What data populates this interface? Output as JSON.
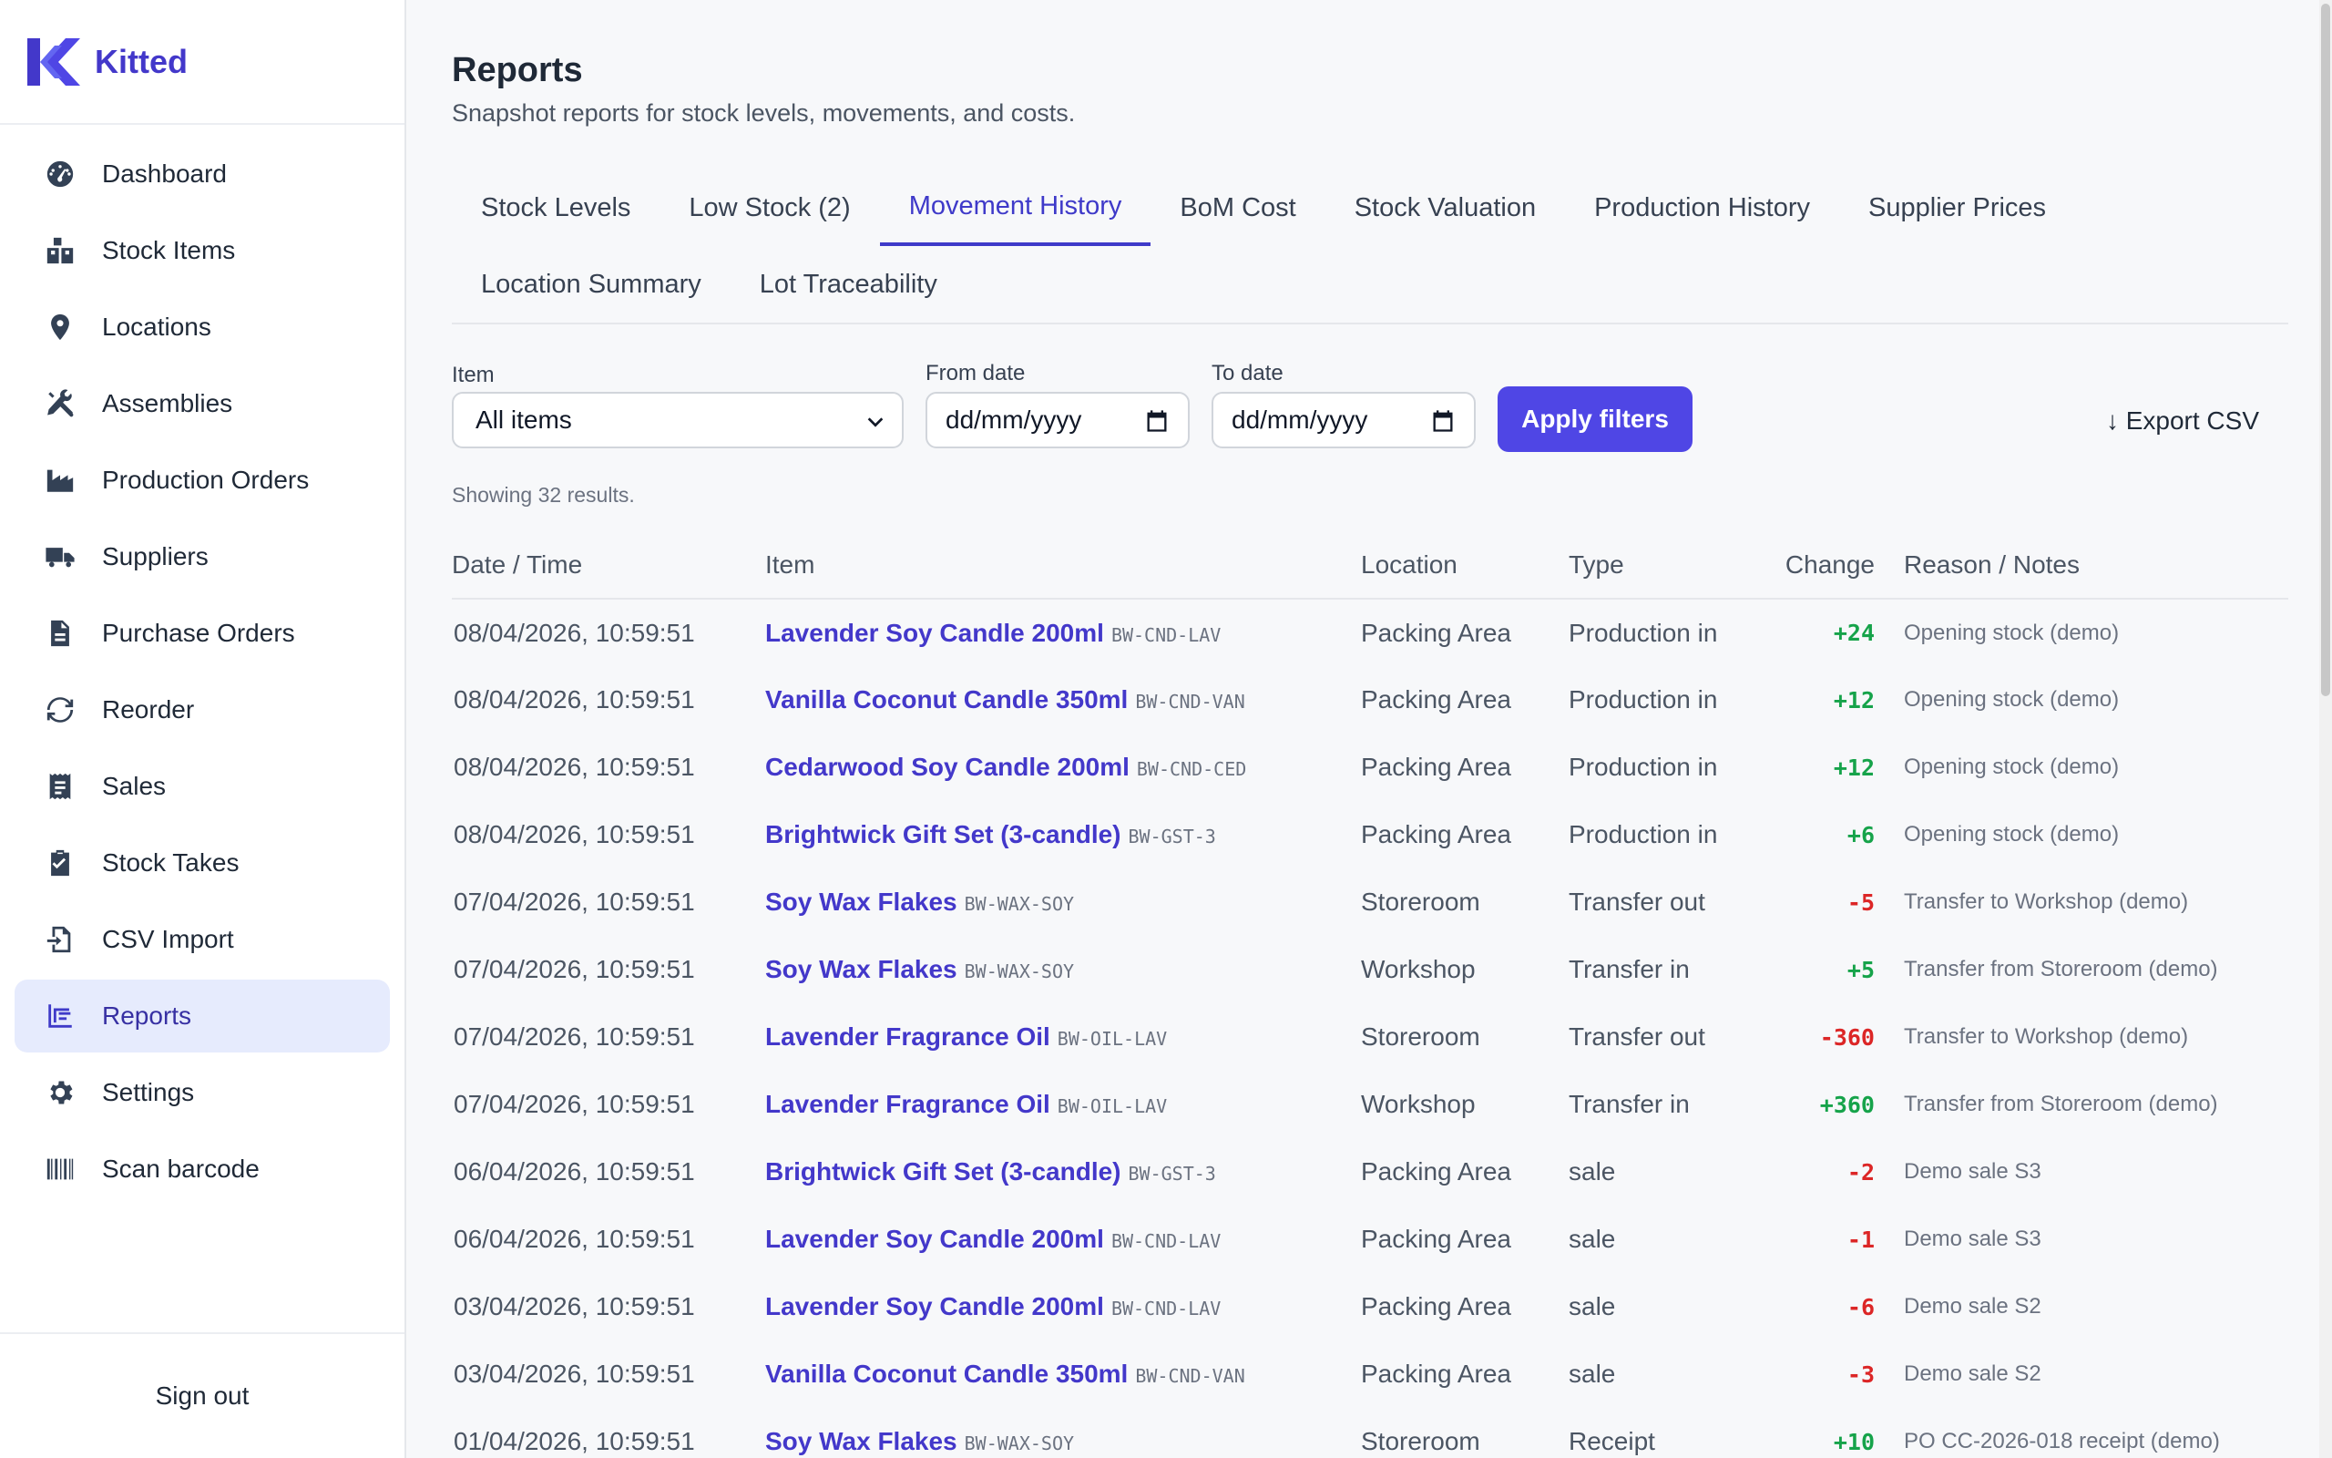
{
  "app": {
    "name": "Kitted"
  },
  "sidebar": {
    "items": [
      {
        "label": "Dashboard",
        "icon": "gauge-icon"
      },
      {
        "label": "Stock Items",
        "icon": "boxes-icon"
      },
      {
        "label": "Locations",
        "icon": "map-pin-icon"
      },
      {
        "label": "Assemblies",
        "icon": "tools-icon"
      },
      {
        "label": "Production Orders",
        "icon": "factory-icon"
      },
      {
        "label": "Suppliers",
        "icon": "truck-icon"
      },
      {
        "label": "Purchase Orders",
        "icon": "document-icon"
      },
      {
        "label": "Reorder",
        "icon": "refresh-icon"
      },
      {
        "label": "Sales",
        "icon": "receipt-icon"
      },
      {
        "label": "Stock Takes",
        "icon": "clipboard-check-icon"
      },
      {
        "label": "CSV Import",
        "icon": "file-import-icon"
      },
      {
        "label": "Reports",
        "icon": "bar-chart-icon",
        "active": true
      },
      {
        "label": "Settings",
        "icon": "gear-icon"
      },
      {
        "label": "Scan barcode",
        "icon": "barcode-icon"
      }
    ],
    "sign_out": "Sign out"
  },
  "page": {
    "title": "Reports",
    "subtitle": "Snapshot reports for stock levels, movements, and costs."
  },
  "tabs": [
    {
      "label": "Stock Levels"
    },
    {
      "label": "Low Stock (2)"
    },
    {
      "label": "Movement History",
      "active": true
    },
    {
      "label": "BoM Cost"
    },
    {
      "label": "Stock Valuation"
    },
    {
      "label": "Production History"
    },
    {
      "label": "Supplier Prices"
    },
    {
      "label": "Location Summary"
    },
    {
      "label": "Lot Traceability"
    }
  ],
  "filters": {
    "item_label": "Item",
    "item_value": "All items",
    "from_label": "From date",
    "from_placeholder": "dd/mm/yyyy",
    "to_label": "To date",
    "to_placeholder": "dd/mm/yyyy",
    "apply_label": "Apply filters",
    "export_label": "↓ Export CSV"
  },
  "results": {
    "count_text": "Showing 32 results."
  },
  "table": {
    "headers": [
      "Date / Time",
      "Item",
      "Location",
      "Type",
      "Change",
      "Reason / Notes"
    ],
    "rows": [
      {
        "datetime": "08/04/2026, 10:59:51",
        "item": "Lavender Soy Candle 200ml",
        "sku": "BW-CND-LAV",
        "location": "Packing Area",
        "type": "Production in",
        "change": "+24",
        "notes": "Opening stock (demo)"
      },
      {
        "datetime": "08/04/2026, 10:59:51",
        "item": "Vanilla Coconut Candle 350ml",
        "sku": "BW-CND-VAN",
        "location": "Packing Area",
        "type": "Production in",
        "change": "+12",
        "notes": "Opening stock (demo)"
      },
      {
        "datetime": "08/04/2026, 10:59:51",
        "item": "Cedarwood Soy Candle 200ml",
        "sku": "BW-CND-CED",
        "location": "Packing Area",
        "type": "Production in",
        "change": "+12",
        "notes": "Opening stock (demo)"
      },
      {
        "datetime": "08/04/2026, 10:59:51",
        "item": "Brightwick Gift Set (3-candle)",
        "sku": "BW-GST-3",
        "location": "Packing Area",
        "type": "Production in",
        "change": "+6",
        "notes": "Opening stock (demo)"
      },
      {
        "datetime": "07/04/2026, 10:59:51",
        "item": "Soy Wax Flakes",
        "sku": "BW-WAX-SOY",
        "location": "Storeroom",
        "type": "Transfer out",
        "change": "-5",
        "notes": "Transfer to Workshop (demo)"
      },
      {
        "datetime": "07/04/2026, 10:59:51",
        "item": "Soy Wax Flakes",
        "sku": "BW-WAX-SOY",
        "location": "Workshop",
        "type": "Transfer in",
        "change": "+5",
        "notes": "Transfer from Storeroom (demo)"
      },
      {
        "datetime": "07/04/2026, 10:59:51",
        "item": "Lavender Fragrance Oil",
        "sku": "BW-OIL-LAV",
        "location": "Storeroom",
        "type": "Transfer out",
        "change": "-360",
        "notes": "Transfer to Workshop (demo)"
      },
      {
        "datetime": "07/04/2026, 10:59:51",
        "item": "Lavender Fragrance Oil",
        "sku": "BW-OIL-LAV",
        "location": "Workshop",
        "type": "Transfer in",
        "change": "+360",
        "notes": "Transfer from Storeroom (demo)"
      },
      {
        "datetime": "06/04/2026, 10:59:51",
        "item": "Brightwick Gift Set (3-candle)",
        "sku": "BW-GST-3",
        "location": "Packing Area",
        "type": "sale",
        "change": "-2",
        "notes": "Demo sale S3"
      },
      {
        "datetime": "06/04/2026, 10:59:51",
        "item": "Lavender Soy Candle 200ml",
        "sku": "BW-CND-LAV",
        "location": "Packing Area",
        "type": "sale",
        "change": "-1",
        "notes": "Demo sale S3"
      },
      {
        "datetime": "03/04/2026, 10:59:51",
        "item": "Lavender Soy Candle 200ml",
        "sku": "BW-CND-LAV",
        "location": "Packing Area",
        "type": "sale",
        "change": "-6",
        "notes": "Demo sale S2"
      },
      {
        "datetime": "03/04/2026, 10:59:51",
        "item": "Vanilla Coconut Candle 350ml",
        "sku": "BW-CND-VAN",
        "location": "Packing Area",
        "type": "sale",
        "change": "-3",
        "notes": "Demo sale S2"
      },
      {
        "datetime": "01/04/2026, 10:59:51",
        "item": "Soy Wax Flakes",
        "sku": "BW-WAX-SOY",
        "location": "Storeroom",
        "type": "Receipt",
        "change": "+10",
        "notes": "PO CC-2026-018 receipt (demo)"
      }
    ]
  },
  "colors": {
    "accent": "#4f46e5",
    "link": "#4338ca",
    "positive": "#16a34a",
    "negative": "#dc2626",
    "active_nav_bg": "#e6ebfd"
  }
}
